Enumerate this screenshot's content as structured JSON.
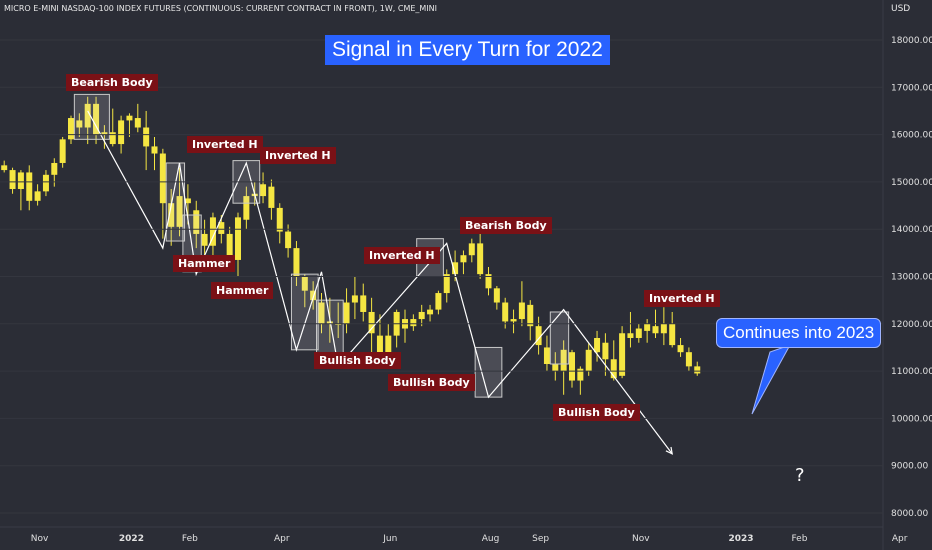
{
  "header": {
    "symbol": "MICRO E-MINI NASDAQ-100 INDEX FUTURES (CONTINUOUS: CURRENT CONTRACT IN FRONT), 1W, CME_MINI",
    "currency": "USD"
  },
  "title": "Signal in Every Turn for 2022",
  "callout": "Continues into 2023",
  "question_mark": "?",
  "labels": {
    "bearish_body_1": "Bearish Body",
    "inverted_h_1": "Inverted H",
    "hammer_1": "Hammer",
    "hammer_2": "Hammer",
    "inverted_h_2": "Inverted H",
    "inverted_h_3": "Inverted H",
    "bullish_body_1": "Bullish Body",
    "bullish_body_2": "Bullish Body",
    "bearish_body_2": "Bearish Body",
    "bullish_body_3": "Bullish Body",
    "inverted_h_4": "Inverted H"
  },
  "colors": {
    "background": "#2b2d36",
    "candle": "#f5e642",
    "label_bg": "#7a1116",
    "title_bg": "#2962ff",
    "box_stroke": "#c9c9c9"
  },
  "chart_data": {
    "type": "candlestick",
    "interval": "1W",
    "y_axis": {
      "ticks": [
        "18000.00",
        "17000.00",
        "16000.00",
        "15000.00",
        "14000.00",
        "13000.00",
        "12000.00",
        "11000.00",
        "10000.00",
        "9000.00",
        "8000.00"
      ],
      "range": [
        7800,
        18600
      ]
    },
    "x_axis": {
      "ticks": [
        {
          "label": "Nov",
          "bold": false
        },
        {
          "label": "2022",
          "bold": true
        },
        {
          "label": "Feb",
          "bold": false
        },
        {
          "label": "Apr",
          "bold": false
        },
        {
          "label": "Jun",
          "bold": false
        },
        {
          "label": "Aug",
          "bold": false
        },
        {
          "label": "Sep",
          "bold": false
        },
        {
          "label": "Nov",
          "bold": false
        },
        {
          "label": "2023",
          "bold": true
        },
        {
          "label": "Feb",
          "bold": false
        },
        {
          "label": "Apr",
          "bold": false
        }
      ],
      "tick_week_index": [
        4,
        15,
        22,
        33,
        46,
        58,
        64,
        76,
        88,
        95,
        107
      ]
    },
    "candles": [
      [
        15350,
        15450,
        15200,
        15250
      ],
      [
        15250,
        15300,
        14750,
        14850
      ],
      [
        14850,
        15250,
        14400,
        15200
      ],
      [
        15200,
        15350,
        14400,
        14600
      ],
      [
        14600,
        14950,
        14500,
        14800
      ],
      [
        14800,
        15250,
        14700,
        15150
      ],
      [
        15150,
        15500,
        14900,
        15400
      ],
      [
        15400,
        15950,
        15300,
        15900
      ],
      [
        15900,
        16400,
        15800,
        16350
      ],
      [
        16300,
        16450,
        15950,
        16150
      ],
      [
        16150,
        16800,
        15800,
        16650
      ],
      [
        16650,
        16800,
        15800,
        16000
      ],
      [
        16000,
        16200,
        15700,
        16050
      ],
      [
        16050,
        16550,
        15750,
        15800
      ],
      [
        15800,
        16400,
        15600,
        16300
      ],
      [
        16300,
        16450,
        15950,
        16400
      ],
      [
        16350,
        16650,
        16050,
        16150
      ],
      [
        16150,
        16500,
        15250,
        15750
      ],
      [
        15750,
        15950,
        15250,
        15600
      ],
      [
        15600,
        15700,
        13800,
        14550
      ],
      [
        14550,
        14850,
        13650,
        14050
      ],
      [
        14050,
        15300,
        13850,
        14700
      ],
      [
        14650,
        14950,
        14100,
        14550
      ],
      [
        14400,
        14600,
        13600,
        13900
      ],
      [
        13900,
        14200,
        13250,
        13650
      ],
      [
        13650,
        14350,
        13300,
        14250
      ],
      [
        14150,
        14300,
        13700,
        13900
      ],
      [
        13900,
        14050,
        13100,
        13350
      ],
      [
        13350,
        14350,
        13000,
        14250
      ],
      [
        14200,
        14900,
        14000,
        14700
      ],
      [
        14700,
        15000,
        14500,
        14750
      ],
      [
        14700,
        15200,
        14550,
        14950
      ],
      [
        14900,
        15050,
        14200,
        14450
      ],
      [
        14450,
        14550,
        13700,
        13950
      ],
      [
        13950,
        14100,
        13400,
        13600
      ],
      [
        13600,
        13750,
        12800,
        13000
      ],
      [
        13000,
        13050,
        12350,
        12700
      ],
      [
        12700,
        12900,
        12300,
        12500
      ],
      [
        12450,
        12650,
        11800,
        12000
      ],
      [
        12000,
        12550,
        11600,
        12050
      ],
      [
        12000,
        12450,
        11700,
        12000
      ],
      [
        12000,
        12750,
        11800,
        12450
      ],
      [
        12450,
        13000,
        12100,
        12600
      ],
      [
        12600,
        12850,
        12050,
        12250
      ],
      [
        12250,
        12550,
        11350,
        11800
      ],
      [
        11750,
        12200,
        11100,
        11250
      ],
      [
        11250,
        12000,
        11050,
        11750
      ],
      [
        11750,
        12300,
        11500,
        12250
      ],
      [
        12100,
        12300,
        11600,
        11900
      ],
      [
        11950,
        12200,
        11850,
        12100
      ],
      [
        12100,
        12400,
        11950,
        12250
      ],
      [
        12200,
        12400,
        12050,
        12300
      ],
      [
        12300,
        12700,
        12200,
        12650
      ],
      [
        12650,
        13150,
        12450,
        13050
      ],
      [
        13050,
        13550,
        12900,
        13300
      ],
      [
        13300,
        13550,
        13050,
        13450
      ],
      [
        13450,
        13800,
        13300,
        13700
      ],
      [
        13700,
        13900,
        12950,
        13050
      ],
      [
        13050,
        13200,
        12600,
        12750
      ],
      [
        12750,
        12800,
        12300,
        12450
      ],
      [
        12450,
        12550,
        11900,
        12050
      ],
      [
        12050,
        12300,
        11800,
        12100
      ],
      [
        12100,
        12900,
        11950,
        12450
      ],
      [
        12400,
        12500,
        11650,
        11950
      ],
      [
        11950,
        12150,
        11350,
        11550
      ],
      [
        11500,
        11750,
        11000,
        11150
      ],
      [
        11150,
        11400,
        10800,
        11000
      ],
      [
        11000,
        11650,
        10500,
        11450
      ],
      [
        11400,
        11450,
        10650,
        10800
      ],
      [
        10800,
        11100,
        10500,
        11050
      ],
      [
        11000,
        11600,
        10900,
        11450
      ],
      [
        11400,
        11850,
        11200,
        11700
      ],
      [
        11600,
        11800,
        10900,
        11250
      ],
      [
        11250,
        11650,
        10800,
        10850
      ],
      [
        10900,
        11950,
        10850,
        11800
      ],
      [
        11800,
        12250,
        11500,
        11700
      ],
      [
        11700,
        12000,
        11600,
        11900
      ],
      [
        11850,
        12100,
        11600,
        12000
      ],
      [
        11950,
        12300,
        11700,
        11800
      ],
      [
        11800,
        12350,
        11550,
        12000
      ],
      [
        12000,
        12250,
        11500,
        11550
      ],
      [
        11550,
        11700,
        11300,
        11400
      ],
      [
        11400,
        11500,
        11000,
        11100
      ],
      [
        11100,
        11200,
        10900,
        10950
      ]
    ],
    "zigzag": [
      [
        10,
        16500
      ],
      [
        19,
        13600
      ],
      [
        21,
        15400
      ],
      [
        23,
        13050
      ],
      [
        29,
        15400
      ],
      [
        35,
        11450
      ],
      [
        38,
        13100
      ],
      [
        40,
        11100
      ],
      [
        53,
        13700
      ],
      [
        58,
        10450
      ],
      [
        67,
        12300
      ],
      [
        80,
        9250
      ]
    ],
    "boxes": [
      [
        9,
        12,
        15900,
        16850
      ],
      [
        20,
        21,
        13750,
        15400
      ],
      [
        22,
        23,
        13100,
        14300
      ],
      [
        28,
        30,
        14550,
        15450
      ],
      [
        35,
        37,
        11450,
        13050
      ],
      [
        38,
        40,
        11100,
        12500
      ],
      [
        50,
        52,
        13000,
        13800
      ],
      [
        57,
        59,
        10450,
        11500
      ],
      [
        66,
        67,
        11150,
        12250
      ]
    ]
  }
}
